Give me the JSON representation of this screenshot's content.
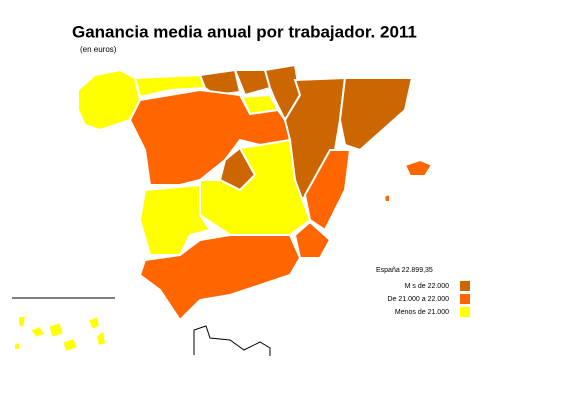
{
  "title": "Ganancia media anual por trabajador. 2011",
  "subtitle": "(en euros)",
  "legend": {
    "total": "España 22.899,35",
    "items": [
      {
        "label": "M s de 22.000",
        "color": "#cc6600"
      },
      {
        "label": "De 21.000 a 22.000",
        "color": "#ff6600"
      },
      {
        "label": "Menos de 21.000",
        "color": "#ffff00"
      }
    ]
  }
}
